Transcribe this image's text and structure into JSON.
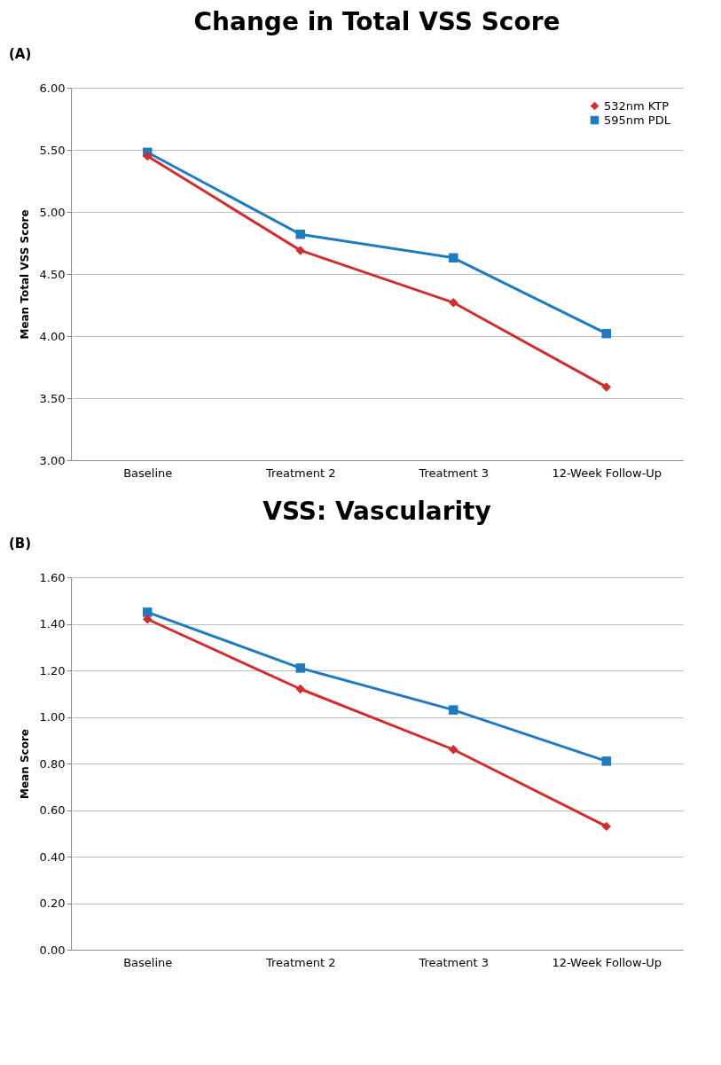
{
  "chart_data": [
    {
      "type": "line",
      "title": "Change in Total VSS Score",
      "ylabel": "Mean Total VSS Score",
      "annotations": [
        "(A)"
      ],
      "categories": [
        "Baseline",
        "Treatment 2",
        "Treatment 3",
        "12-Week Follow-Up"
      ],
      "series": [
        {
          "name": "532nm KTP",
          "color": "#d12d2f",
          "marker": "diamond",
          "values": [
            5.45,
            4.69,
            4.27,
            3.59
          ]
        },
        {
          "name": "595nm PDL",
          "color": "#1f7bbf",
          "marker": "square",
          "values": [
            5.48,
            4.82,
            4.63,
            4.02
          ]
        }
      ],
      "ylim": [
        3,
        6
      ],
      "yticks": [
        {
          "value": 3,
          "label": "3.00"
        },
        {
          "value": 3.5,
          "label": "3.50"
        },
        {
          "value": 4,
          "label": "4.00"
        },
        {
          "value": 4.5,
          "label": "4.50"
        },
        {
          "value": 5,
          "label": "5.00"
        },
        {
          "value": 5.5,
          "label": "5.50"
        },
        {
          "value": 6,
          "label": "6.00"
        }
      ],
      "grid": "y",
      "legend": "top right",
      "line_style": "solid"
    },
    {
      "type": "line",
      "title": "VSS: Vascularity",
      "ylabel": "Mean Score",
      "annotations": [
        "(B)"
      ],
      "categories": [
        "Baseline",
        "Treatment 2",
        "Treatment 3",
        "12-Week Follow-Up"
      ],
      "series": [
        {
          "color": "#d12d2f",
          "marker": "diamond",
          "values": [
            1.42,
            1.12,
            0.86,
            0.53
          ]
        },
        {
          "color": "#1f7bbf",
          "marker": "square",
          "values": [
            1.45,
            1.21,
            1.03,
            0.81
          ]
        }
      ],
      "ylim": [
        0,
        1.6
      ],
      "yticks": [
        {
          "value": 0,
          "label": "0.00"
        },
        {
          "value": 0.2,
          "label": "0.20"
        },
        {
          "value": 0.4,
          "label": "0.40"
        },
        {
          "value": 0.6,
          "label": "0.60"
        },
        {
          "value": 0.8,
          "label": "0.80"
        },
        {
          "value": 1,
          "label": "1.00"
        },
        {
          "value": 1.2,
          "label": "1.20"
        },
        {
          "value": 1.4,
          "label": "1.40"
        },
        {
          "value": 1.6,
          "label": "1.60"
        }
      ],
      "grid": "y",
      "legend": false,
      "line_style": "solid"
    }
  ]
}
